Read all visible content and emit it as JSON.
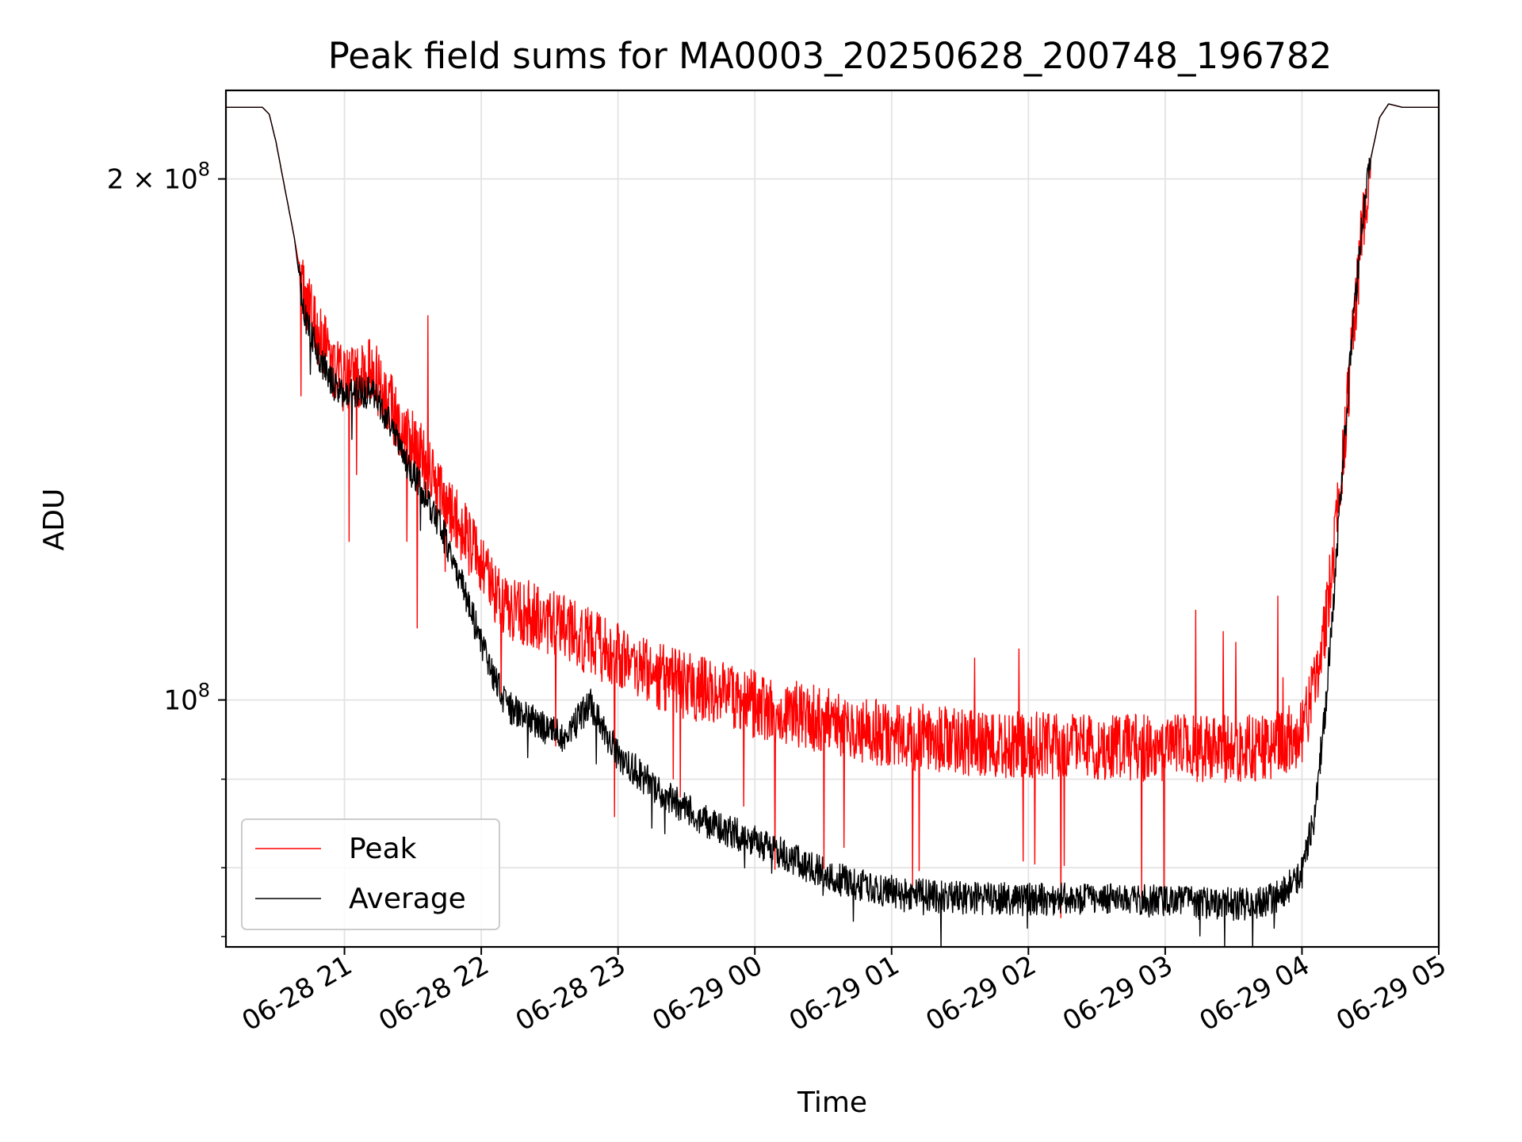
{
  "chart_data": {
    "type": "line",
    "title": "Peak field sums for MA0003_20250628_200748_196782",
    "xlabel": "Time",
    "ylabel": "ADU",
    "yscale": "log",
    "grid": true,
    "legend_position": "lower-left",
    "x_range": [
      "06-28 20:08",
      "06-29 05:00"
    ],
    "y_range": [
      72000000,
      225000000
    ],
    "x_ticks": [
      "06-28 21",
      "06-28 22",
      "06-28 23",
      "06-29 00",
      "06-29 01",
      "06-29 02",
      "06-29 03",
      "06-29 04",
      "06-29 05"
    ],
    "y_ticks": [
      {
        "value": 200000000,
        "label": "2 × 10^8",
        "base": "2 × 10",
        "exp": "8"
      },
      {
        "value": 100000000,
        "label": "10^8",
        "base": "10",
        "exp": "8"
      }
    ],
    "series": [
      {
        "name": "Peak",
        "color": "#ff0000",
        "x": [
          "06-28 20:08",
          "06-28 20:24",
          "06-28 20:27",
          "06-28 20:30",
          "06-28 20:34",
          "06-28 20:38",
          "06-28 20:42",
          "06-28 20:48",
          "06-28 20:54",
          "06-28 21:00",
          "06-28 21:06",
          "06-28 21:12",
          "06-28 21:18",
          "06-28 21:24",
          "06-28 21:30",
          "06-28 21:36",
          "06-28 21:42",
          "06-28 21:48",
          "06-28 21:54",
          "06-28 22:00",
          "06-28 22:06",
          "06-28 22:12",
          "06-28 22:24",
          "06-28 22:36",
          "06-28 22:48",
          "06-28 23:00",
          "06-28 23:12",
          "06-28 23:24",
          "06-28 23:36",
          "06-28 23:48",
          "06-29 00:00",
          "06-29 00:20",
          "06-29 00:40",
          "06-29 01:00",
          "06-29 01:20",
          "06-29 01:40",
          "06-29 02:00",
          "06-29 02:20",
          "06-29 02:40",
          "06-29 03:00",
          "06-29 03:20",
          "06-29 03:40",
          "06-29 03:50",
          "06-29 04:00",
          "06-29 04:05",
          "06-29 04:10",
          "06-29 04:14",
          "06-29 04:18",
          "06-29 04:22",
          "06-29 04:26",
          "06-29 04:30",
          "06-29 04:34",
          "06-29 04:38",
          "06-29 04:44",
          "06-29 05:00"
        ],
        "y": [
          220000000,
          220000000,
          218000000,
          210000000,
          197000000,
          185000000,
          172000000,
          163000000,
          157000000,
          153000000,
          154000000,
          155000000,
          150000000,
          145000000,
          141000000,
          137000000,
          132000000,
          128000000,
          124000000,
          120000000,
          116000000,
          113000000,
          112000000,
          110000000,
          108000000,
          106000000,
          104000000,
          102500000,
          101500000,
          100500000,
          99500000,
          98000000,
          96800000,
          95500000,
          95000000,
          94500000,
          94300000,
          94100000,
          94000000,
          93900000,
          93800000,
          93800000,
          94500000,
          96000000,
          101000000,
          110000000,
          122000000,
          138000000,
          160000000,
          185000000,
          205000000,
          217000000,
          221000000,
          220000000,
          220000000
        ]
      },
      {
        "name": "Average",
        "color": "#000000",
        "x": [
          "06-28 20:08",
          "06-28 20:24",
          "06-28 20:27",
          "06-28 20:30",
          "06-28 20:34",
          "06-28 20:38",
          "06-28 20:42",
          "06-28 20:48",
          "06-28 20:54",
          "06-28 21:00",
          "06-28 21:06",
          "06-28 21:12",
          "06-28 21:18",
          "06-28 21:24",
          "06-28 21:30",
          "06-28 21:36",
          "06-28 21:42",
          "06-28 21:48",
          "06-28 21:54",
          "06-28 22:00",
          "06-28 22:06",
          "06-28 22:12",
          "06-28 22:24",
          "06-28 22:36",
          "06-28 22:48",
          "06-28 23:00",
          "06-28 23:12",
          "06-28 23:24",
          "06-28 23:36",
          "06-28 23:48",
          "06-29 00:00",
          "06-29 00:20",
          "06-29 00:40",
          "06-29 01:00",
          "06-29 01:20",
          "06-29 01:40",
          "06-29 02:00",
          "06-29 02:20",
          "06-29 02:40",
          "06-29 03:00",
          "06-29 03:20",
          "06-29 03:40",
          "06-29 03:50",
          "06-29 04:00",
          "06-29 04:05",
          "06-29 04:10",
          "06-29 04:14",
          "06-29 04:18",
          "06-29 04:22",
          "06-29 04:26",
          "06-29 04:30",
          "06-29 04:34",
          "06-29 04:38",
          "06-29 04:44",
          "06-29 05:00"
        ],
        "y": [
          220000000,
          220000000,
          218000000,
          210000000,
          197000000,
          185000000,
          168000000,
          159000000,
          153000000,
          150000000,
          151000000,
          150500000,
          146000000,
          140000000,
          135000000,
          131000000,
          126000000,
          120000000,
          114000000,
          108000000,
          103000000,
          99000000,
          97000000,
          95000000,
          99500000,
          93000000,
          90000000,
          87500000,
          85500000,
          84000000,
          83000000,
          80500000,
          78500000,
          77500000,
          77000000,
          76800000,
          76700000,
          76800000,
          76700000,
          76500000,
          76300000,
          76200000,
          77000000,
          79500000,
          85000000,
          98000000,
          115000000,
          138000000,
          162000000,
          186000000,
          205000000,
          217000000,
          221000000,
          220000000,
          220000000
        ]
      }
    ]
  }
}
